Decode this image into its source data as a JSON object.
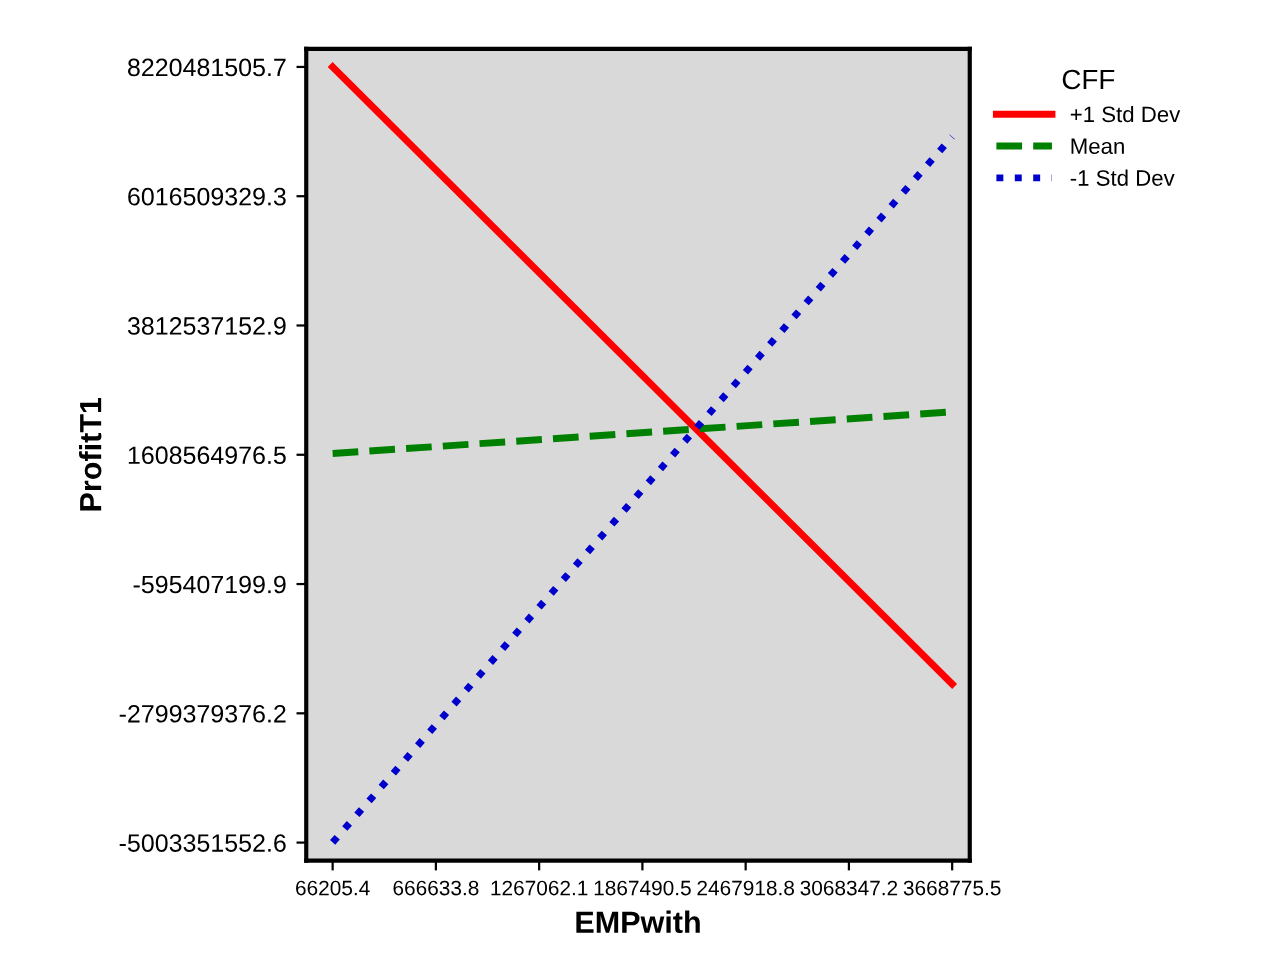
{
  "chart_data": {
    "type": "line",
    "xlabel": "EMPwith",
    "ylabel": "ProfitT1",
    "legend_title": "CFF",
    "x": [
      66205.4,
      3668775.5
    ],
    "series": [
      {
        "name": "+1 Std Dev",
        "color": "#ff0000",
        "line_style": "solid",
        "values": [
          8220000000,
          -2300000000
        ]
      },
      {
        "name": "Mean",
        "color": "#008000",
        "line_style": "dashed",
        "values": [
          1630000000,
          2340000000
        ]
      },
      {
        "name": "-1 Std Dev",
        "color": "#0000cc",
        "line_style": "dotted",
        "values": [
          -5000000000,
          7030000000
        ]
      }
    ],
    "xlim": [
      -87300,
      3771100
    ],
    "ylim": [
      -5311000000,
      8528000000
    ],
    "xticks": [
      66205.4,
      666633.8,
      1267062.1,
      1867490.5,
      2467918.8,
      3068347.2,
      3668775.5
    ],
    "yticks": [
      8220481505.7,
      6016509329.3,
      3812537152.9,
      1608564976.5,
      -595407199.9,
      -2799379376.2,
      -5003351552.6
    ],
    "grid": false,
    "legend": "top right",
    "marker": "none"
  }
}
